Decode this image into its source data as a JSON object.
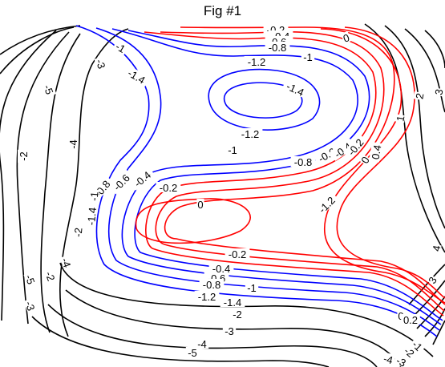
{
  "figure": {
    "title": "Fig #1"
  },
  "chart_data": {
    "type": "contour",
    "title": "Fig #1",
    "xlabel": "",
    "ylabel": "",
    "axes_visible": false,
    "grid": false,
    "levels": [
      -5,
      -4,
      -3,
      -2,
      -1.4,
      -1.2,
      -1,
      -0.8,
      -0.6,
      -0.4,
      -0.2,
      0,
      0.2,
      0.4,
      1,
      2,
      3,
      4,
      5
    ],
    "color_rules": [
      {
        "range": "level <= -2 or level >= 1",
        "color": "#000000"
      },
      {
        "range": "-2 < level <= -0.6",
        "color": "#0000ff"
      },
      {
        "range": "-0.6 < level < 1",
        "color": "#ff0000"
      }
    ],
    "features": [
      {
        "name": "basin-upper",
        "min_level": -1.4
      },
      {
        "name": "basin-lower",
        "min_level": -0.2
      },
      {
        "name": "steep-gradient",
        "location": "lower-right"
      }
    ],
    "labels": [
      {
        "text": "-0.2",
        "level": -0.2
      },
      {
        "text": "-0.4",
        "level": -0.4
      },
      {
        "text": "-0.6",
        "level": -0.6
      },
      {
        "text": "-0.8",
        "level": -0.8
      },
      {
        "text": "0",
        "level": 0
      },
      {
        "text": "-1",
        "level": -1
      },
      {
        "text": "-1.2",
        "level": -1.2
      },
      {
        "text": "-1",
        "level": -1
      },
      {
        "text": "-1.4",
        "level": -1.4
      },
      {
        "text": "-1.4",
        "level": -1.4
      },
      {
        "text": "-1.2",
        "level": -1.2
      },
      {
        "text": "-1",
        "level": -1
      },
      {
        "text": "-0.8",
        "level": -0.8
      },
      {
        "text": "-0.6",
        "level": -0.6
      },
      {
        "text": "-0.4",
        "level": -0.4
      },
      {
        "text": "-0.2",
        "level": -0.2
      },
      {
        "text": "0",
        "level": 0
      },
      {
        "text": "0.4",
        "level": 0.4
      },
      {
        "text": "1",
        "level": 1
      },
      {
        "text": "2",
        "level": 2
      },
      {
        "text": "3",
        "level": 3
      },
      {
        "text": "-0.8",
        "level": -0.8
      },
      {
        "text": "-0.6",
        "level": -0.6
      },
      {
        "text": "-0.4",
        "level": -0.4
      },
      {
        "text": "-0.2",
        "level": -0.2
      },
      {
        "text": "0",
        "level": 0
      },
      {
        "text": "-1.2",
        "level": -1.2
      },
      {
        "text": "-1",
        "level": -1
      },
      {
        "text": "-1.4",
        "level": -1.4
      },
      {
        "text": "-2",
        "level": -2
      },
      {
        "text": "-3",
        "level": -3
      },
      {
        "text": "-4",
        "level": -4
      },
      {
        "text": "-5",
        "level": -5
      },
      {
        "text": "-2",
        "level": -2
      },
      {
        "text": "-4",
        "level": -4
      },
      {
        "text": "-5",
        "level": -5
      },
      {
        "text": "-3",
        "level": -3
      },
      {
        "text": "-2",
        "level": -2
      },
      {
        "text": "-0.2",
        "level": -0.2
      },
      {
        "text": "-0.4",
        "level": -0.4
      },
      {
        "text": "-0.6",
        "level": -0.6
      },
      {
        "text": "-0.8",
        "level": -0.8
      },
      {
        "text": "-1",
        "level": -1
      },
      {
        "text": "-1.2",
        "level": -1.2
      },
      {
        "text": "-1.4",
        "level": -1.4
      },
      {
        "text": "-2",
        "level": -2
      },
      {
        "text": "-3",
        "level": -3
      },
      {
        "text": "-4",
        "level": -4
      },
      {
        "text": "-5",
        "level": -5
      },
      {
        "text": "4",
        "level": 4
      },
      {
        "text": "3",
        "level": 3
      },
      {
        "text": "-4",
        "level": -4
      },
      {
        "text": "-3",
        "level": -3
      },
      {
        "text": "-2",
        "level": -2
      },
      {
        "text": "-1",
        "level": -1
      },
      {
        "text": "0",
        "level": 0
      },
      {
        "text": "0.2",
        "level": 0.2
      }
    ]
  }
}
